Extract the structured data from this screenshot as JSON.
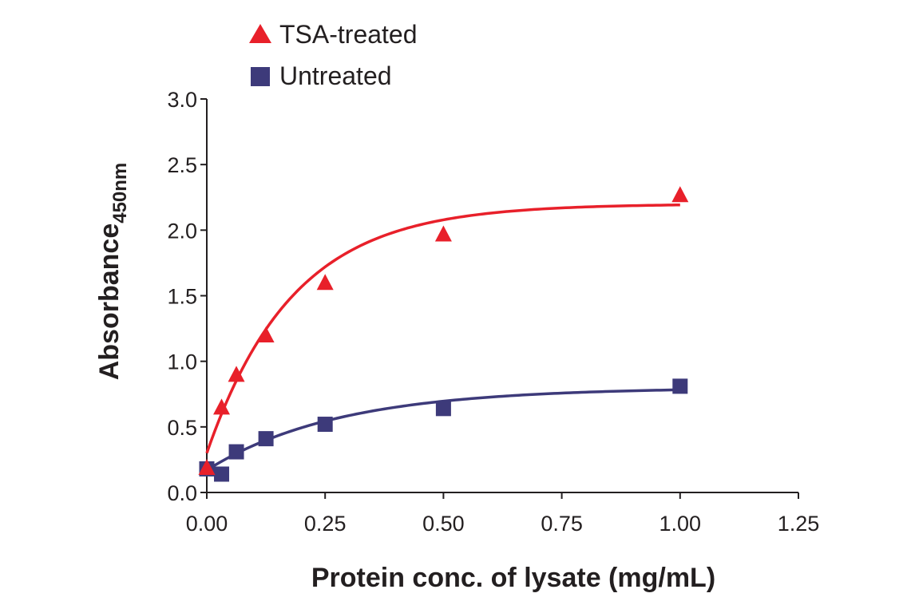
{
  "chart_data": {
    "type": "scatter",
    "title": "",
    "xlabel": "Protein conc. of lysate (mg/mL)",
    "ylabel_main": "Absorbance",
    "ylabel_sub": "450nm",
    "xlim": [
      0,
      1.25
    ],
    "ylim": [
      0,
      3.0
    ],
    "x_ticks": [
      "0.00",
      "0.25",
      "0.50",
      "0.75",
      "1.00",
      "1.25"
    ],
    "y_ticks": [
      "0.0",
      "0.5",
      "1.0",
      "1.5",
      "2.0",
      "2.5",
      "3.0"
    ],
    "grid": false,
    "legend_position": "top-left",
    "series": [
      {
        "name": "TSA-treated",
        "marker": "triangle",
        "color": "#e8202a",
        "x": [
          0.0,
          0.03125,
          0.0625,
          0.125,
          0.25,
          0.5,
          1.0
        ],
        "y": [
          0.18,
          0.64,
          0.89,
          1.19,
          1.59,
          1.96,
          2.26
        ],
        "fit": {
          "model": "y = c + (a - c)(1 - exp(-k x))",
          "c": 0.3,
          "a": 2.2,
          "k": 5.5
        }
      },
      {
        "name": "Untreated",
        "marker": "square",
        "color": "#3d3a7a",
        "x": [
          0.0,
          0.03125,
          0.0625,
          0.125,
          0.25,
          0.5,
          1.0
        ],
        "y": [
          0.18,
          0.14,
          0.31,
          0.41,
          0.52,
          0.64,
          0.81
        ],
        "fit": {
          "model": "y = c + (a - c)(1 - exp(-k x))",
          "c": 0.17,
          "a": 0.8,
          "k": 3.6
        }
      }
    ]
  }
}
